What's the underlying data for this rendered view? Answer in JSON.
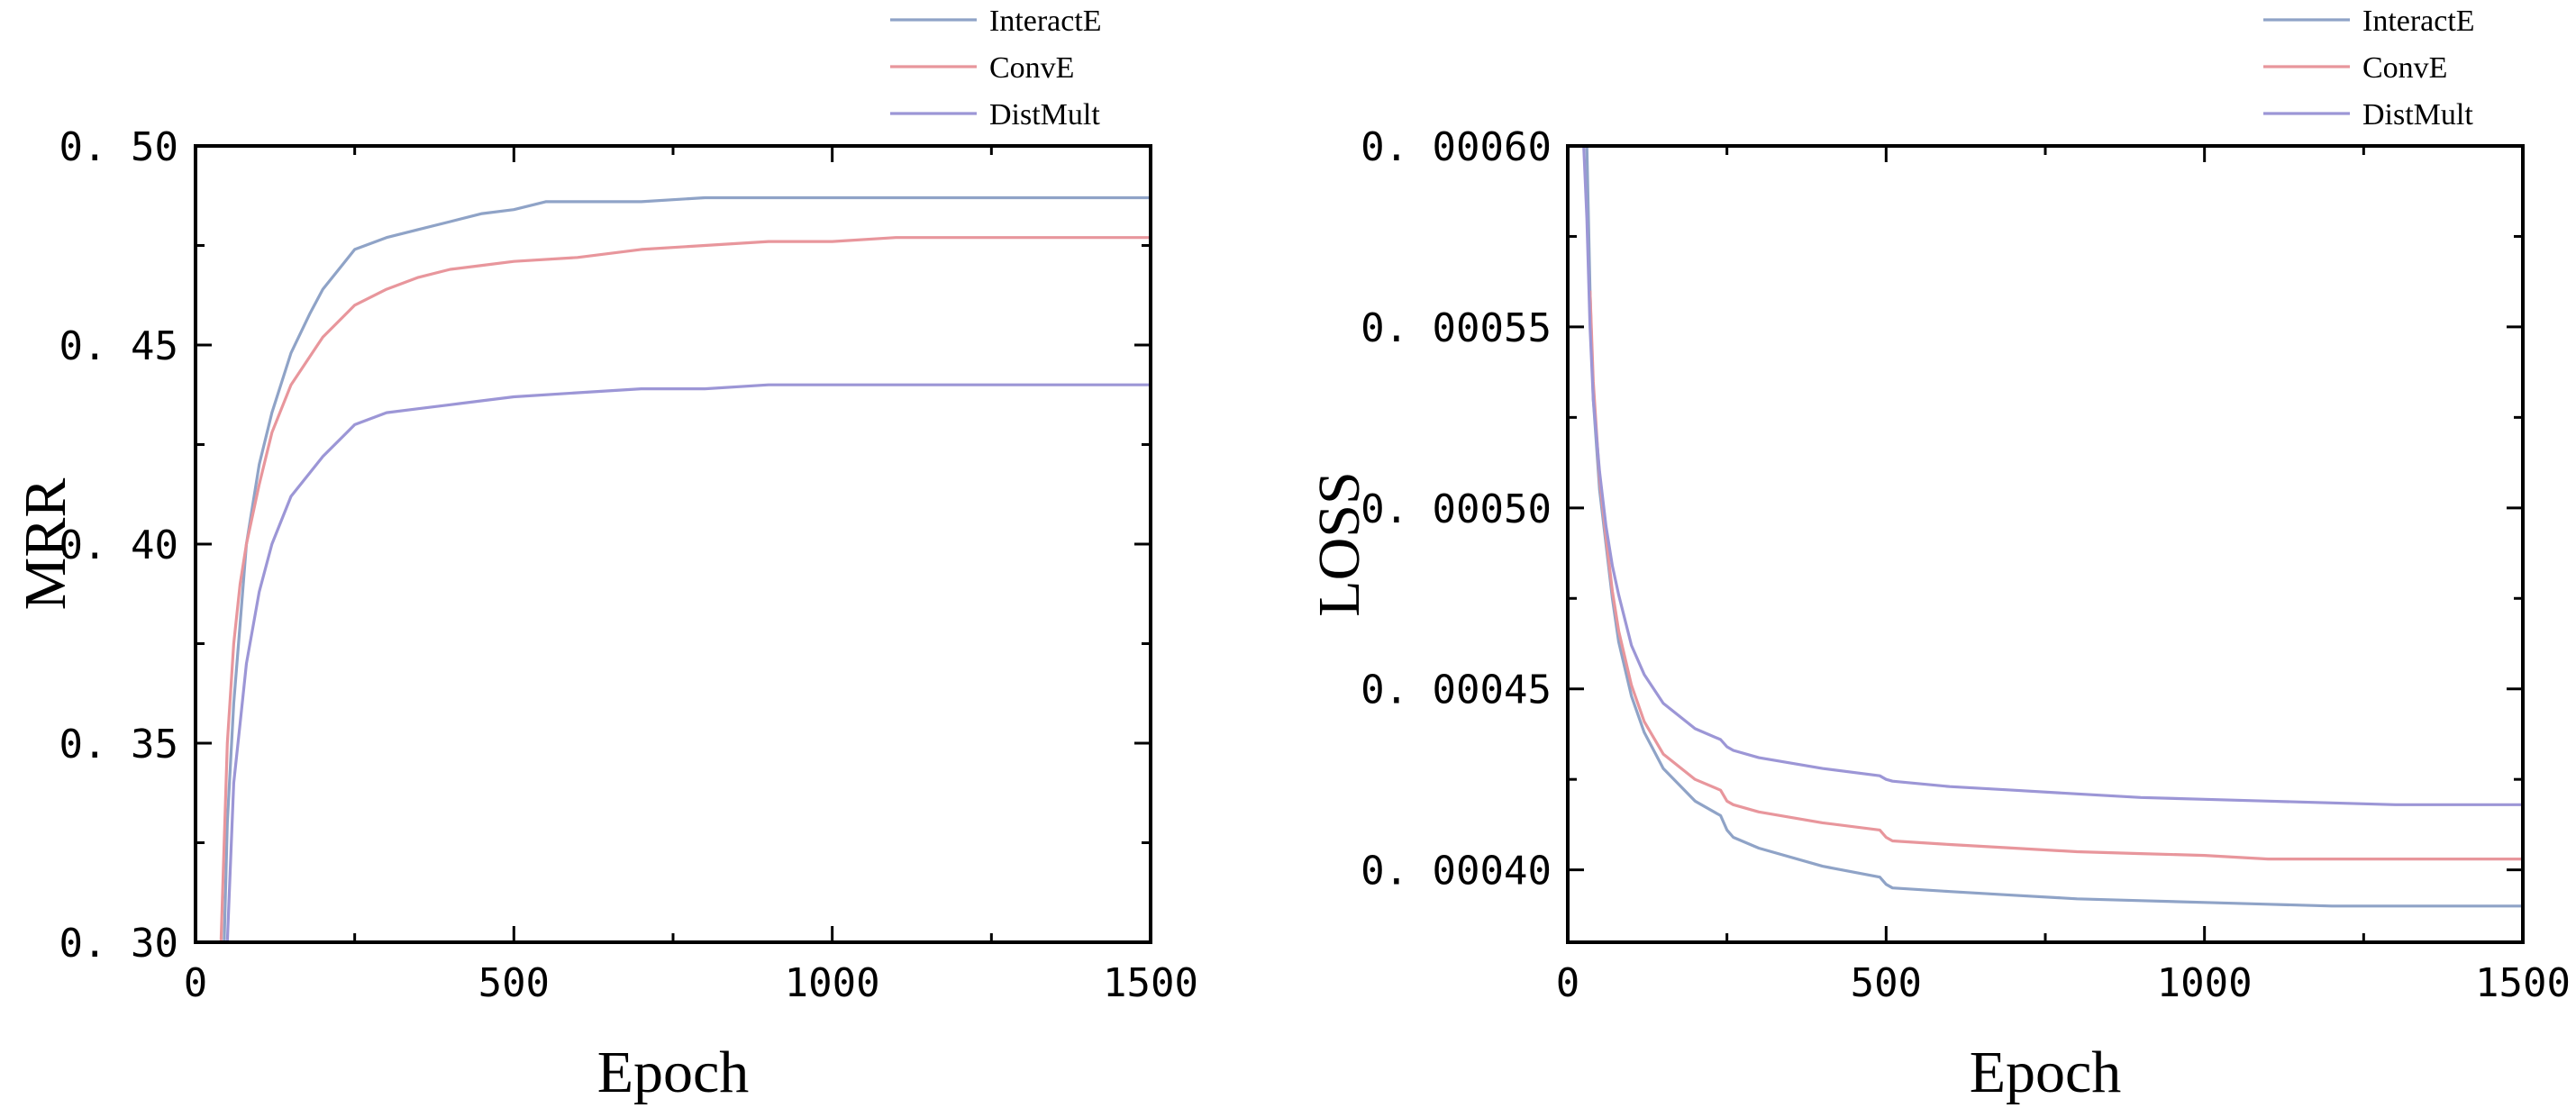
{
  "colors": {
    "InteractE": "#8fa3c7",
    "ConvE": "#e8969c",
    "DistMult": "#9c96d6"
  },
  "chart_data": [
    {
      "type": "line",
      "title": "",
      "xlabel": "Epoch",
      "ylabel": "MRR",
      "xlim": [
        0,
        1500
      ],
      "ylim": [
        0.3,
        0.5
      ],
      "xticks": [
        0,
        500,
        1000,
        1500
      ],
      "xtick_labels": [
        "0",
        "500",
        "1000",
        "1500"
      ],
      "yticks": [
        0.3,
        0.35,
        0.4,
        0.45,
        0.5
      ],
      "ytick_labels": [
        "0. 30",
        "0. 35",
        "0. 40",
        "0. 45",
        "0. 50"
      ],
      "legend": [
        "InteractE",
        "ConvE",
        "DistMult"
      ],
      "legend_position": "top-right, above plot",
      "series": [
        {
          "name": "InteractE",
          "x": [
            45,
            50,
            60,
            70,
            80,
            100,
            120,
            150,
            180,
            200,
            250,
            300,
            350,
            400,
            450,
            500,
            550,
            600,
            700,
            800,
            900,
            1000,
            1100,
            1200,
            1300,
            1400,
            1500
          ],
          "values": [
            0.3,
            0.33,
            0.36,
            0.38,
            0.4,
            0.42,
            0.433,
            0.448,
            0.458,
            0.464,
            0.474,
            0.477,
            0.479,
            0.481,
            0.483,
            0.484,
            0.486,
            0.486,
            0.486,
            0.487,
            0.487,
            0.487,
            0.487,
            0.487,
            0.487,
            0.487,
            0.487
          ]
        },
        {
          "name": "ConvE",
          "x": [
            40,
            50,
            60,
            70,
            80,
            100,
            120,
            150,
            200,
            250,
            300,
            350,
            400,
            450,
            500,
            600,
            700,
            800,
            900,
            1000,
            1100,
            1200,
            1300,
            1400,
            1500
          ],
          "values": [
            0.3,
            0.35,
            0.375,
            0.39,
            0.4,
            0.415,
            0.428,
            0.44,
            0.452,
            0.46,
            0.464,
            0.467,
            0.469,
            0.47,
            0.471,
            0.472,
            0.474,
            0.475,
            0.476,
            0.476,
            0.477,
            0.477,
            0.477,
            0.477,
            0.477
          ]
        },
        {
          "name": "DistMult",
          "x": [
            50,
            60,
            70,
            80,
            100,
            120,
            150,
            200,
            250,
            300,
            350,
            400,
            450,
            500,
            600,
            700,
            800,
            900,
            1000,
            1100,
            1200,
            1300,
            1400,
            1500
          ],
          "values": [
            0.3,
            0.34,
            0.355,
            0.37,
            0.388,
            0.4,
            0.412,
            0.422,
            0.43,
            0.433,
            0.434,
            0.435,
            0.436,
            0.437,
            0.438,
            0.439,
            0.439,
            0.44,
            0.44,
            0.44,
            0.44,
            0.44,
            0.44,
            0.44
          ]
        }
      ]
    },
    {
      "type": "line",
      "title": "",
      "xlabel": "Epoch",
      "ylabel": "LOSS",
      "xlim": [
        0,
        1500
      ],
      "ylim": [
        0.00038,
        0.0006
      ],
      "xticks": [
        0,
        500,
        1000,
        1500
      ],
      "xtick_labels": [
        "0",
        "500",
        "1000",
        "1500"
      ],
      "yticks": [
        0.0004,
        0.00045,
        0.0005,
        0.00055,
        0.0006
      ],
      "ytick_labels": [
        "0. 00040",
        "0. 00045",
        "0. 00050",
        "0. 00055",
        "0. 00060"
      ],
      "legend": [
        "InteractE",
        "ConvE",
        "DistMult"
      ],
      "legend_position": "top-right, above plot",
      "series": [
        {
          "name": "InteractE",
          "x": [
            30,
            35,
            40,
            50,
            60,
            70,
            80,
            100,
            120,
            150,
            200,
            240,
            250,
            260,
            300,
            400,
            490,
            500,
            510,
            600,
            700,
            800,
            900,
            1000,
            1100,
            1200,
            1300,
            1400,
            1500
          ],
          "values": [
            0.0006,
            0.00056,
            0.00053,
            0.000505,
            0.00049,
            0.000475,
            0.000463,
            0.000448,
            0.000438,
            0.000428,
            0.000419,
            0.000415,
            0.000411,
            0.000409,
            0.000406,
            0.000401,
            0.000398,
            0.000396,
            0.000395,
            0.000394,
            0.000393,
            0.000392,
            0.0003915,
            0.000391,
            0.0003905,
            0.00039,
            0.00039,
            0.00039,
            0.00039
          ]
        },
        {
          "name": "ConvE",
          "x": [
            35,
            40,
            50,
            60,
            70,
            80,
            100,
            120,
            150,
            200,
            240,
            250,
            260,
            300,
            400,
            490,
            500,
            510,
            600,
            700,
            800,
            900,
            1000,
            1100,
            1200,
            1300,
            1400,
            1500
          ],
          "values": [
            0.00056,
            0.000535,
            0.000508,
            0.000492,
            0.000477,
            0.000466,
            0.000451,
            0.000441,
            0.000432,
            0.000425,
            0.000422,
            0.000419,
            0.000418,
            0.000416,
            0.000413,
            0.000411,
            0.000409,
            0.000408,
            0.000407,
            0.000406,
            0.000405,
            0.0004045,
            0.000404,
            0.000403,
            0.000403,
            0.000403,
            0.000403,
            0.000403
          ]
        },
        {
          "name": "DistMult",
          "x": [
            25,
            30,
            35,
            40,
            50,
            60,
            70,
            80,
            100,
            120,
            150,
            200,
            240,
            250,
            260,
            300,
            400,
            490,
            500,
            510,
            600,
            700,
            800,
            900,
            1000,
            1100,
            1200,
            1300,
            1400,
            1500
          ],
          "values": [
            0.0006,
            0.00058,
            0.00055,
            0.00053,
            0.00051,
            0.000495,
            0.000484,
            0.000476,
            0.000462,
            0.000454,
            0.000446,
            0.000439,
            0.000436,
            0.000434,
            0.000433,
            0.000431,
            0.000428,
            0.000426,
            0.000425,
            0.0004245,
            0.000423,
            0.000422,
            0.000421,
            0.00042,
            0.0004195,
            0.000419,
            0.0004185,
            0.000418,
            0.000418,
            0.000418
          ]
        }
      ]
    }
  ]
}
